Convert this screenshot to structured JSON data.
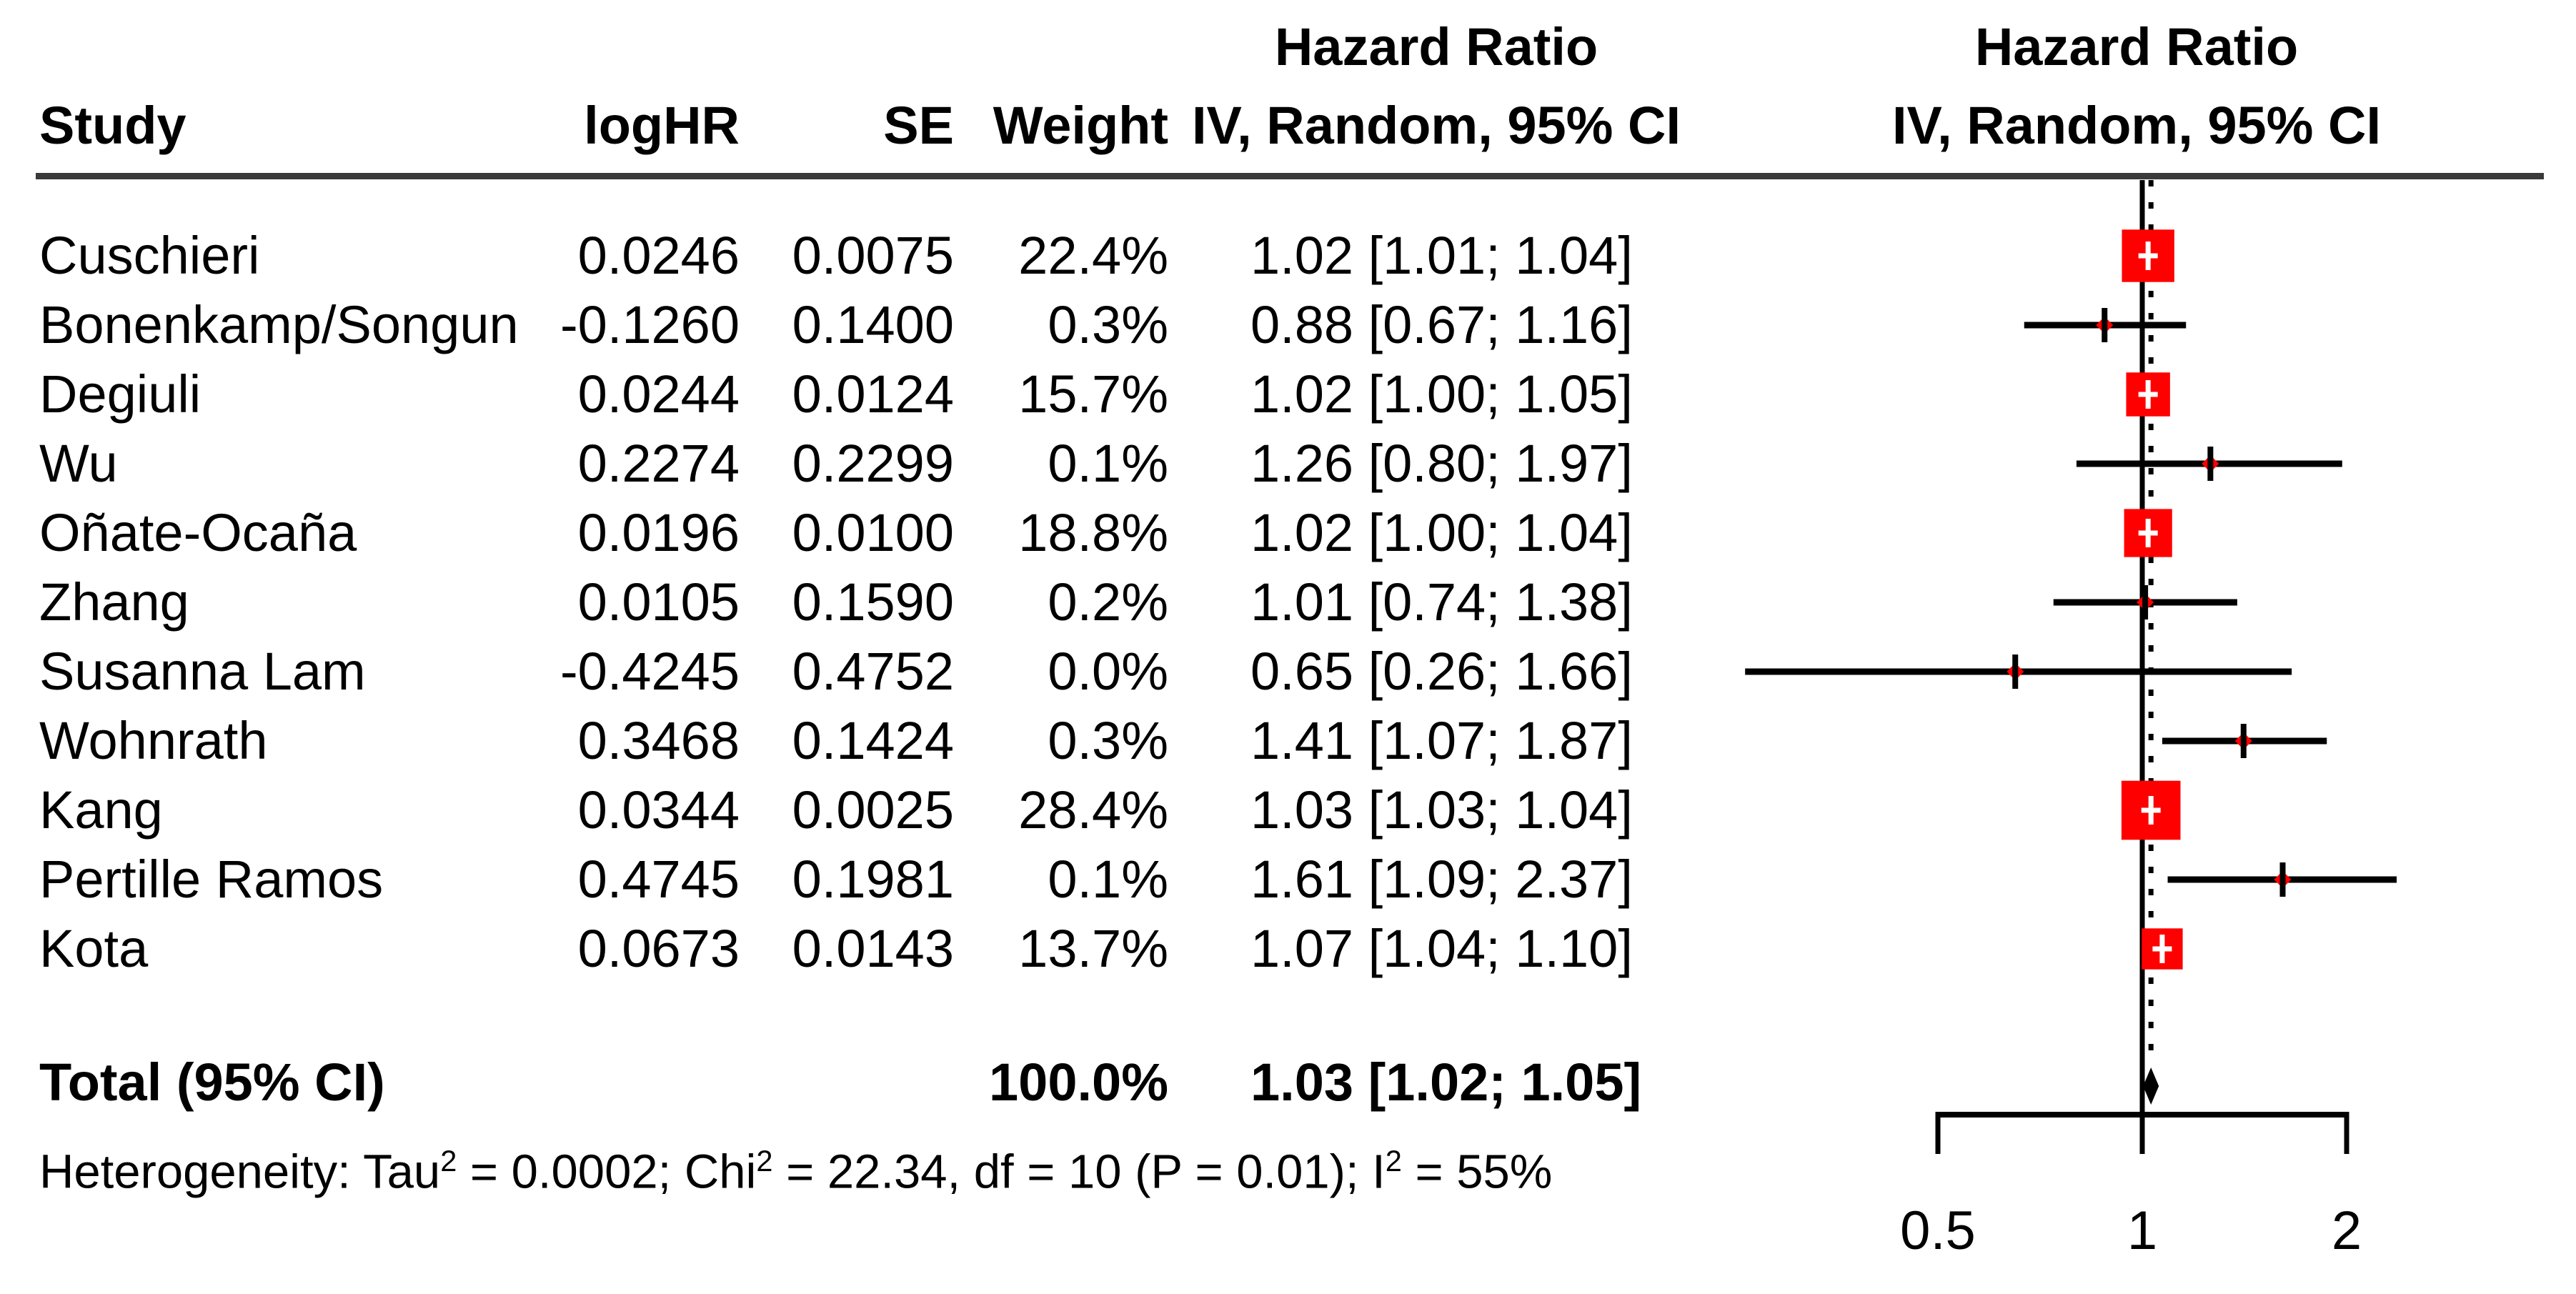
{
  "header": {
    "study": "Study",
    "loghr": "logHR",
    "se": "SE",
    "weight": "Weight",
    "hazard_ratio": "Hazard Ratio",
    "method": "IV, Random, 95% CI"
  },
  "chart_data": {
    "type": "forest",
    "x_scale": "log",
    "xlim": [
      0.26,
      2.37
    ],
    "axis": {
      "ticks": [
        {
          "value": 0.5,
          "label": "0.5"
        },
        {
          "value": 1,
          "label": "1"
        },
        {
          "value": 2,
          "label": "2"
        }
      ],
      "null_value": 1,
      "overall_value": 1.03
    },
    "colors": {
      "marker_red": "#FF0000",
      "line_black": "#000000",
      "rule_gray": "#3A3A3A"
    },
    "studies": [
      {
        "study": "Cuschieri",
        "logHR": "0.0246",
        "SE": "0.0075",
        "weight": "22.4%",
        "weight_value": 22.4,
        "marker": "square",
        "hr": 1.02,
        "lo": 1.01,
        "hi": 1.04,
        "ci_text": "1.02 [1.01; 1.04]"
      },
      {
        "study": "Bonenkamp/Songun",
        "logHR": "-0.1260",
        "SE": "0.1400",
        "weight": "0.3%",
        "weight_value": 0.3,
        "marker": "line",
        "hr": 0.88,
        "lo": 0.67,
        "hi": 1.16,
        "ci_text": "0.88 [0.67; 1.16]"
      },
      {
        "study": "Degiuli",
        "logHR": "0.0244",
        "SE": "0.0124",
        "weight": "15.7%",
        "weight_value": 15.7,
        "marker": "square",
        "hr": 1.02,
        "lo": 1.0,
        "hi": 1.05,
        "ci_text": "1.02 [1.00; 1.05]"
      },
      {
        "study": "Wu",
        "logHR": "0.2274",
        "SE": "0.2299",
        "weight": "0.1%",
        "weight_value": 0.1,
        "marker": "line",
        "hr": 1.26,
        "lo": 0.8,
        "hi": 1.97,
        "ci_text": "1.26 [0.80; 1.97]"
      },
      {
        "study": "Oñate-Ocaña",
        "logHR": "0.0196",
        "SE": "0.0100",
        "weight": "18.8%",
        "weight_value": 18.8,
        "marker": "square",
        "hr": 1.02,
        "lo": 1.0,
        "hi": 1.04,
        "ci_text": "1.02 [1.00; 1.04]"
      },
      {
        "study": "Zhang",
        "logHR": "0.0105",
        "SE": "0.1590",
        "weight": "0.2%",
        "weight_value": 0.2,
        "marker": "line",
        "hr": 1.01,
        "lo": 0.74,
        "hi": 1.38,
        "ci_text": "1.01 [0.74; 1.38]"
      },
      {
        "study": "Susanna Lam",
        "logHR": "-0.4245",
        "SE": "0.4752",
        "weight": "0.0%",
        "weight_value": 0.0,
        "marker": "line",
        "hr": 0.65,
        "lo": 0.26,
        "hi": 1.66,
        "ci_text": "0.65 [0.26; 1.66]"
      },
      {
        "study": "Wohnrath",
        "logHR": "0.3468",
        "SE": "0.1424",
        "weight": "0.3%",
        "weight_value": 0.3,
        "marker": "line",
        "hr": 1.41,
        "lo": 1.07,
        "hi": 1.87,
        "ci_text": "1.41 [1.07; 1.87]"
      },
      {
        "study": "Kang",
        "logHR": "0.0344",
        "SE": "0.0025",
        "weight": "28.4%",
        "weight_value": 28.4,
        "marker": "square",
        "hr": 1.03,
        "lo": 1.03,
        "hi": 1.04,
        "ci_text": "1.03 [1.03; 1.04]"
      },
      {
        "study": "Pertille Ramos",
        "logHR": "0.4745",
        "SE": "0.1981",
        "weight": "0.1%",
        "weight_value": 0.1,
        "marker": "line",
        "hr": 1.61,
        "lo": 1.09,
        "hi": 2.37,
        "ci_text": "1.61 [1.09; 2.37]"
      },
      {
        "study": "Kota",
        "logHR": "0.0673",
        "SE": "0.0143",
        "weight": "13.7%",
        "weight_value": 13.7,
        "marker": "square",
        "hr": 1.07,
        "lo": 1.04,
        "hi": 1.1,
        "ci_text": "1.07 [1.04; 1.10]"
      }
    ],
    "total": {
      "label": "Total (95% CI)",
      "weight": "100.0%",
      "hr": 1.03,
      "lo": 1.02,
      "hi": 1.05,
      "ci_text": "1.03 [1.02; 1.05]"
    },
    "heterogeneity": [
      {
        "text": "Heterogeneity: Tau"
      },
      {
        "sup": "2"
      },
      {
        "text": " = 0.0002; Chi"
      },
      {
        "sup": "2"
      },
      {
        "text": " = 22.34, df = 10 (P = 0.01); I"
      },
      {
        "sup": "2"
      },
      {
        "text": " = 55%"
      }
    ]
  }
}
